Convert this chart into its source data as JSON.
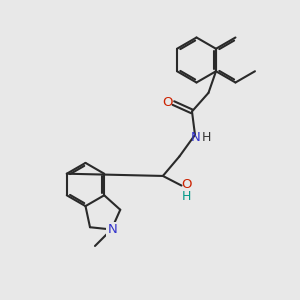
{
  "background_color": "#e8e8e8",
  "bond_color": "#2a2a2a",
  "N_color": "#3333cc",
  "O_color": "#cc2200",
  "OH_color": "#009988",
  "lw": 1.5,
  "figsize": [
    3.0,
    3.0
  ],
  "dpi": 100,
  "xlim": [
    0,
    10
  ],
  "ylim": [
    0,
    10
  ]
}
